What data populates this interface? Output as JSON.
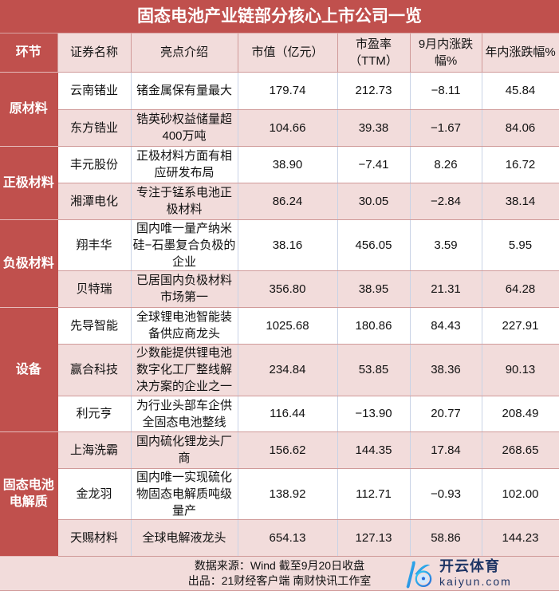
{
  "title": "固态电池产业链部分核心上市公司一览",
  "headers": [
    "环节",
    "证券名称",
    "亮点介绍",
    "市值（亿元）",
    "市盈率（TTM）",
    "9月内涨跌幅%",
    "年内涨跌幅%"
  ],
  "groups": [
    {
      "name": "原材料",
      "rows": [
        {
          "name": "云南锗业",
          "desc": "锗金属保有量最大",
          "cap": "179.74",
          "pe": "212.73",
          "sep": "−8.11",
          "ytd": "45.84"
        },
        {
          "name": "东方锆业",
          "desc": "锆英砂权益储量超400万吨",
          "cap": "104.66",
          "pe": "39.38",
          "sep": "−1.67",
          "ytd": "84.06"
        }
      ]
    },
    {
      "name": "正极材料",
      "rows": [
        {
          "name": "丰元股份",
          "desc": "正极材料方面有相应研发布局",
          "cap": "38.90",
          "pe": "−7.41",
          "sep": "8.26",
          "ytd": "16.72"
        },
        {
          "name": "湘潭电化",
          "desc": "专注于锰系电池正极材料",
          "cap": "86.24",
          "pe": "30.05",
          "sep": "−2.84",
          "ytd": "38.14"
        }
      ]
    },
    {
      "name": "负极材料",
      "rows": [
        {
          "name": "翔丰华",
          "desc": "国内唯一量产纳米硅−石墨复合负极的企业",
          "cap": "38.16",
          "pe": "456.05",
          "sep": "3.59",
          "ytd": "5.95"
        },
        {
          "name": "贝特瑞",
          "desc": "已居国内负极材料市场第一",
          "cap": "356.80",
          "pe": "38.95",
          "sep": "21.31",
          "ytd": "64.28"
        }
      ]
    },
    {
      "name": "设备",
      "rows": [
        {
          "name": "先导智能",
          "desc": "全球锂电池智能装备供应商龙头",
          "cap": "1025.68",
          "pe": "180.86",
          "sep": "84.43",
          "ytd": "227.91"
        },
        {
          "name": "赢合科技",
          "desc": "少数能提供锂电池数字化工厂整线解决方案的企业之一",
          "cap": "234.84",
          "pe": "53.85",
          "sep": "38.36",
          "ytd": "90.13"
        },
        {
          "name": "利元亨",
          "desc": "为行业头部车企供全固态电池整线",
          "cap": "116.44",
          "pe": "−13.90",
          "sep": "20.77",
          "ytd": "208.49"
        }
      ]
    },
    {
      "name": "固态电池电解质",
      "rows": [
        {
          "name": "上海洗霸",
          "desc": "国内硫化锂龙头厂商",
          "cap": "156.62",
          "pe": "144.35",
          "sep": "17.84",
          "ytd": "268.65"
        },
        {
          "name": "金龙羽",
          "desc": "国内唯一实现硫化物固态电解质吨级量产",
          "cap": "138.92",
          "pe": "112.71",
          "sep": "−0.93",
          "ytd": "102.00"
        },
        {
          "name": "天赐材料",
          "desc": "全球电解液龙头",
          "cap": "654.13",
          "pe": "127.13",
          "sep": "58.86",
          "ytd": "144.23"
        }
      ]
    }
  ],
  "footer": {
    "source": "数据来源：Wind 截至9月20日收盘",
    "producer": "出品：21财经客户端 南财快讯工作室"
  },
  "watermark": {
    "cn": "开云体育",
    "en": "kaiyun.com"
  },
  "colors": {
    "accent": "#c0504d",
    "row_alt": "#f2dcdb",
    "watermark": "#1e3565"
  }
}
